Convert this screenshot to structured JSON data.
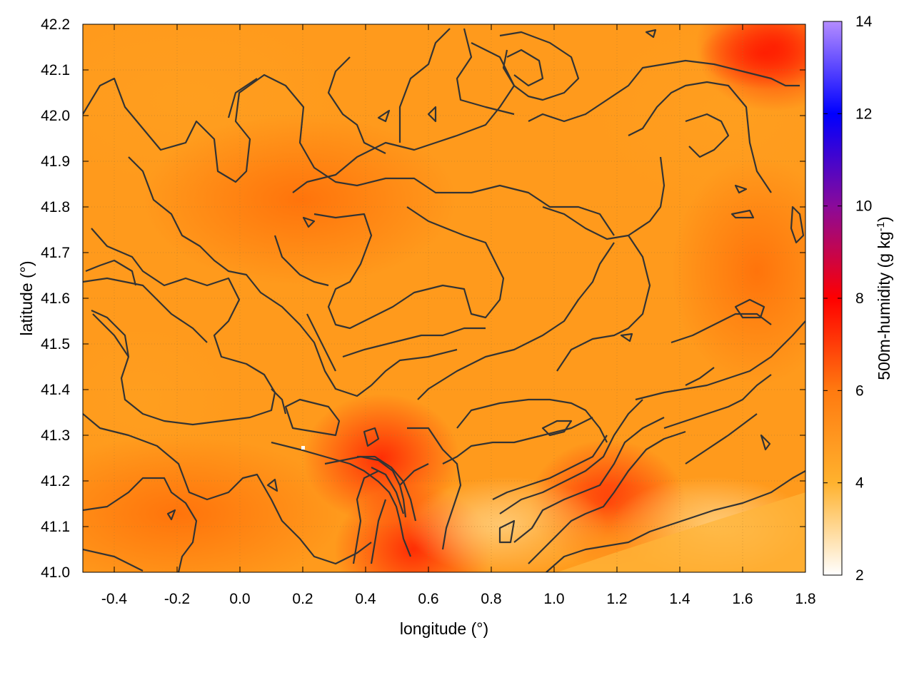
{
  "chart_data": {
    "type": "heatmap",
    "xlabel": "longitude (°)",
    "ylabel": "latitude (°)",
    "colorbar_label": "500m-humidity (g kg",
    "colorbar_label_sup": "-1",
    "colorbar_label_close": ")",
    "xlim": [
      -0.5,
      1.8
    ],
    "ylim": [
      41.0,
      42.2
    ],
    "clim": [
      2,
      14
    ],
    "x_ticks": [
      "-0.4",
      "-0.2",
      "0.0",
      "0.2",
      "0.4",
      "0.6",
      "0.8",
      "1.0",
      "1.2",
      "1.4",
      "1.6",
      "1.8"
    ],
    "x_tick_values": [
      -0.4,
      -0.2,
      0.0,
      0.2,
      0.4,
      0.6,
      0.8,
      1.0,
      1.2,
      1.4,
      1.6,
      1.8
    ],
    "y_ticks": [
      "41.0",
      "41.1",
      "41.2",
      "41.3",
      "41.4",
      "41.5",
      "41.6",
      "41.7",
      "41.8",
      "41.9",
      "42.0",
      "42.1",
      "42.2"
    ],
    "y_tick_values": [
      41.0,
      41.1,
      41.2,
      41.3,
      41.4,
      41.5,
      41.6,
      41.7,
      41.8,
      41.9,
      42.0,
      42.1,
      42.2
    ],
    "colorbar_ticks": [
      "2",
      "4",
      "6",
      "8",
      "10",
      "12",
      "14"
    ],
    "colorbar_tick_values": [
      2,
      4,
      6,
      8,
      10,
      12,
      14
    ],
    "colormap": [
      {
        "value": 2,
        "color": "#ffffff"
      },
      {
        "value": 4,
        "color": "#ffb22e"
      },
      {
        "value": 6,
        "color": "#ff7a10"
      },
      {
        "value": 8,
        "color": "#ff0000"
      },
      {
        "value": 10,
        "color": "#8a0a9a"
      },
      {
        "value": 12,
        "color": "#0000ff"
      },
      {
        "value": 14,
        "color": "#b48cff"
      }
    ],
    "grid": true,
    "contour_color": "#333333",
    "humid_maxima": [
      {
        "lon": 0.45,
        "lat": 41.25,
        "value": 8.0
      },
      {
        "lon": 0.55,
        "lat": 41.05,
        "value": 8.0
      },
      {
        "lon": 1.17,
        "lat": 41.15,
        "value": 7.8
      },
      {
        "lon": 1.7,
        "lat": 42.15,
        "value": 8.0
      }
    ],
    "dry_minima": [
      {
        "lon": 0.85,
        "lat": 41.1,
        "value": 3.5
      },
      {
        "lon": 1.5,
        "lat": 41.1,
        "value": 4.0
      }
    ]
  }
}
